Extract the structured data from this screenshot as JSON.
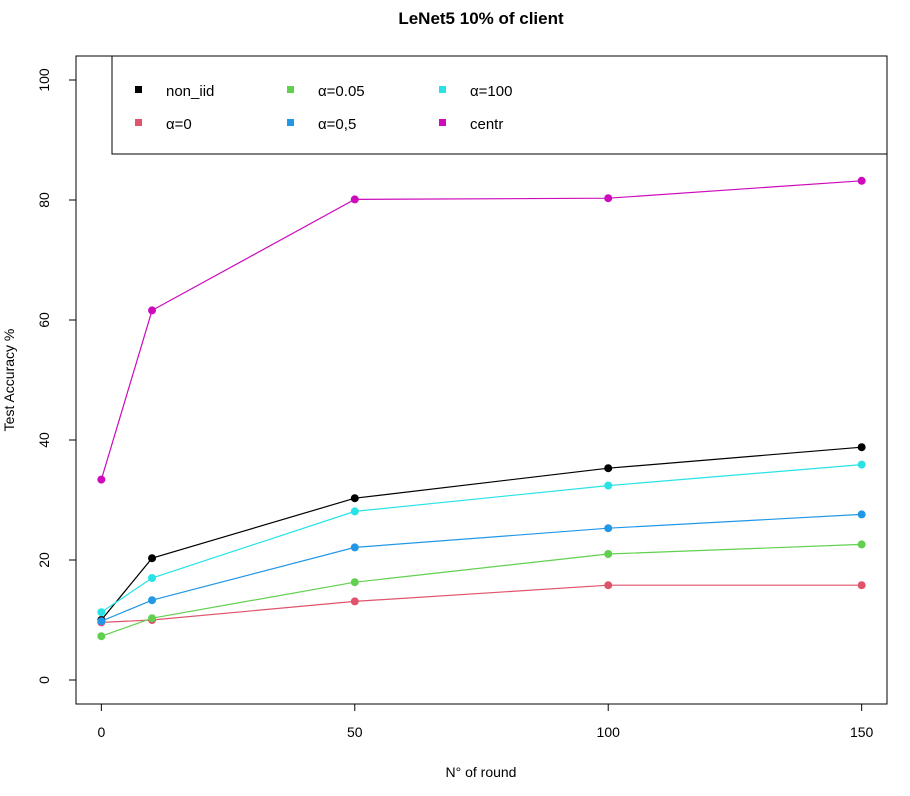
{
  "chart_data": {
    "type": "line",
    "title": "LeNet5 10% of client",
    "xlabel": "N° of round",
    "ylabel": "Test Accuracy %",
    "x": [
      0,
      10,
      50,
      100,
      150
    ],
    "xlim": [
      -5,
      155
    ],
    "ylim": [
      -4,
      104
    ],
    "x_ticks": [
      "0",
      "50",
      "100",
      "150"
    ],
    "x_tick_values": [
      0,
      50,
      100,
      150
    ],
    "y_ticks": [
      "0",
      "20",
      "40",
      "60",
      "80",
      "100"
    ],
    "y_tick_values": [
      0,
      20,
      40,
      60,
      80,
      100
    ],
    "grid": false,
    "legend_position": "top-right",
    "series": [
      {
        "name": "non_iid",
        "color": "#000000",
        "values": [
          10.0,
          20.3,
          30.3,
          35.3,
          38.8
        ]
      },
      {
        "name": "α=0",
        "color": "#DF536B",
        "values": [
          9.6,
          10.0,
          13.1,
          15.8,
          15.8
        ]
      },
      {
        "name": "α=0.05",
        "color": "#61D04F",
        "values": [
          7.3,
          10.3,
          16.3,
          21.0,
          22.6
        ]
      },
      {
        "name": "α=0,5",
        "color": "#2297E6",
        "values": [
          9.8,
          13.3,
          22.1,
          25.3,
          27.6
        ]
      },
      {
        "name": "α=100",
        "color": "#28E2E5",
        "values": [
          11.3,
          17.0,
          28.1,
          32.4,
          35.9
        ]
      },
      {
        "name": "centr",
        "color": "#CD0BBC",
        "values": [
          33.4,
          61.6,
          80.1,
          80.3,
          83.2
        ]
      }
    ]
  }
}
